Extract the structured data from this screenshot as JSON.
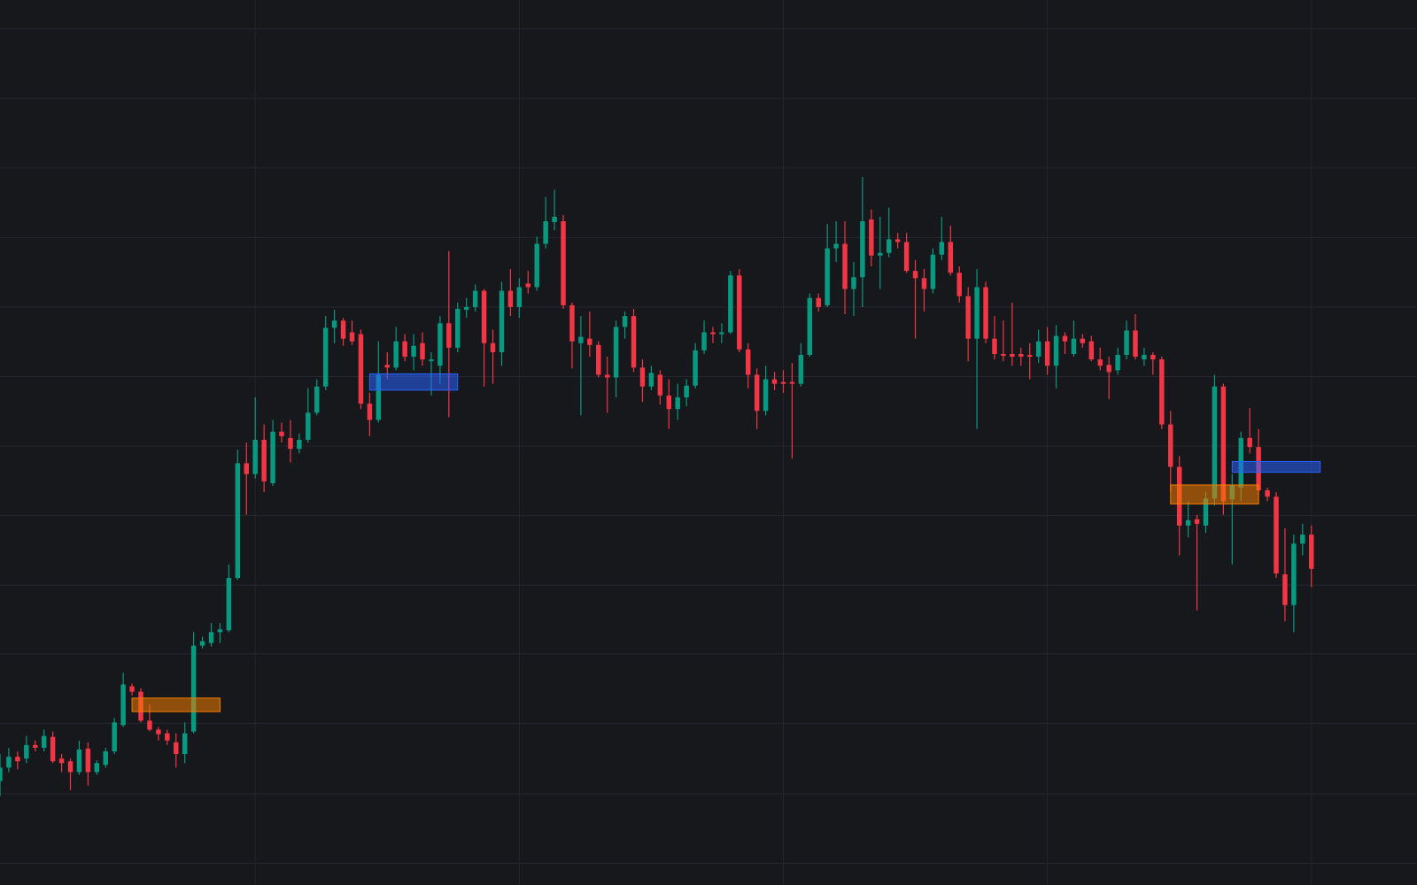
{
  "chart_data": {
    "type": "candlestick",
    "up_color": "#089981",
    "down_color": "#f23645",
    "grid": true,
    "xlim": [
      0,
      161
    ],
    "ylim": [
      0,
      980
    ],
    "xticks": [
      29,
      59,
      89,
      119,
      149
    ],
    "yticks": [
      24,
      101,
      179,
      256,
      332,
      409,
      486,
      563,
      640,
      717,
      794,
      871,
      948
    ],
    "open": [
      115,
      130,
      142,
      140,
      155,
      152,
      164,
      140,
      137,
      125,
      151,
      125,
      133,
      148,
      177,
      220,
      214,
      182,
      172,
      168,
      158,
      145,
      170,
      265,
      268,
      280,
      282,
      340,
      467,
      455,
      493,
      445,
      502,
      495,
      483,
      493,
      523,
      552,
      617,
      625,
      612,
      610,
      533,
      515,
      576,
      573,
      602,
      585,
      600,
      580,
      575,
      622,
      595,
      637,
      640,
      658,
      600,
      590,
      658,
      640,
      666,
      662,
      710,
      734,
      735,
      642,
      600,
      605,
      598,
      565,
      562,
      618,
      630,
      573,
      552,
      565,
      542,
      527,
      540,
      553,
      592,
      612,
      610,
      612,
      675,
      593,
      565,
      525,
      560,
      557,
      557,
      555,
      587,
      650,
      642,
      705,
      710,
      660,
      673,
      737,
      697,
      700,
      715,
      712,
      680,
      672,
      660,
      698,
      712,
      678,
      652,
      605,
      662,
      605,
      588,
      588,
      588,
      587,
      585,
      602,
      575,
      608,
      588,
      605,
      602,
      582,
      576,
      570,
      587,
      614,
      582,
      587,
      582,
      510,
      463,
      398,
      405,
      398,
      428,
      552,
      427,
      440,
      495,
      485,
      437,
      430,
      344,
      310,
      378,
      388
    ],
    "high": [
      145,
      152,
      148,
      165,
      160,
      172,
      170,
      145,
      140,
      160,
      158,
      138,
      152,
      185,
      235,
      223,
      218,
      200,
      175,
      172,
      168,
      180,
      280,
      275,
      290,
      290,
      355,
      482,
      490,
      540,
      510,
      515,
      512,
      515,
      500,
      550,
      560,
      630,
      637,
      628,
      625,
      615,
      545,
      602,
      590,
      618,
      610,
      610,
      612,
      590,
      630,
      702,
      645,
      650,
      665,
      660,
      615,
      668,
      682,
      672,
      680,
      718,
      762,
      770,
      742,
      645,
      630,
      635,
      602,
      585,
      625,
      635,
      638,
      582,
      575,
      570,
      560,
      555,
      560,
      600,
      625,
      618,
      622,
      680,
      682,
      600,
      572,
      575,
      568,
      570,
      578,
      600,
      655,
      655,
      732,
      735,
      735,
      690,
      784,
      748,
      740,
      750,
      722,
      722,
      692,
      682,
      705,
      740,
      730,
      685,
      662,
      682,
      668,
      630,
      625,
      645,
      595,
      600,
      615,
      618,
      620,
      612,
      625,
      610,
      608,
      595,
      585,
      595,
      625,
      632,
      595,
      590,
      585,
      525,
      475,
      425,
      410,
      435,
      565,
      555,
      455,
      502,
      528,
      505,
      440,
      435,
      395,
      388,
      400,
      398
    ],
    "low": [
      98,
      125,
      128,
      135,
      148,
      148,
      135,
      125,
      105,
      122,
      110,
      122,
      130,
      145,
      175,
      210,
      180,
      170,
      160,
      155,
      130,
      135,
      168,
      262,
      264,
      268,
      280,
      338,
      410,
      450,
      435,
      442,
      490,
      468,
      478,
      490,
      520,
      548,
      600,
      597,
      598,
      527,
      497,
      512,
      560,
      570,
      580,
      570,
      575,
      542,
      555,
      518,
      590,
      628,
      635,
      552,
      555,
      575,
      630,
      628,
      655,
      658,
      705,
      725,
      638,
      572,
      520,
      585,
      562,
      523,
      540,
      605,
      568,
      535,
      548,
      532,
      505,
      515,
      530,
      550,
      588,
      600,
      600,
      610,
      590,
      550,
      505,
      520,
      548,
      545,
      472,
      552,
      585,
      635,
      640,
      690,
      632,
      630,
      640,
      685,
      660,
      695,
      705,
      678,
      605,
      635,
      655,
      692,
      675,
      645,
      580,
      505,
      600,
      582,
      580,
      575,
      575,
      560,
      578,
      565,
      550,
      588,
      585,
      595,
      580,
      570,
      538,
      565,
      582,
      582,
      575,
      565,
      505,
      435,
      365,
      385,
      304,
      390,
      420,
      410,
      355,
      425,
      478,
      432,
      425,
      340,
      292,
      280,
      365,
      330
    ],
    "close": [
      130,
      142,
      137,
      155,
      152,
      165,
      137,
      135,
      125,
      150,
      125,
      135,
      148,
      180,
      222,
      214,
      182,
      172,
      167,
      160,
      145,
      168,
      265,
      270,
      280,
      283,
      340,
      467,
      455,
      493,
      447,
      502,
      497,
      483,
      493,
      523,
      552,
      617,
      625,
      605,
      602,
      533,
      515,
      565,
      573,
      602,
      585,
      597,
      582,
      582,
      622,
      595,
      638,
      640,
      658,
      600,
      590,
      658,
      640,
      662,
      662,
      710,
      735,
      740,
      642,
      602,
      607,
      598,
      565,
      562,
      618,
      630,
      573,
      552,
      567,
      542,
      527,
      540,
      553,
      592,
      612,
      610,
      612,
      675,
      593,
      565,
      525,
      560,
      555,
      555,
      555,
      587,
      650,
      640,
      705,
      710,
      660,
      673,
      735,
      697,
      700,
      715,
      712,
      680,
      672,
      660,
      698,
      712,
      678,
      652,
      605,
      662,
      605,
      588,
      586,
      585,
      585,
      585,
      602,
      575,
      608,
      602,
      605,
      600,
      582,
      575,
      568,
      587,
      614,
      585,
      587,
      582,
      510,
      463,
      398,
      404,
      400,
      428,
      552,
      425,
      443,
      495,
      485,
      437,
      430,
      345,
      310,
      378,
      388,
      350
    ],
    "zones": [
      {
        "x": [
          15,
          25
        ],
        "y": [
          192,
          207
        ],
        "color": "#f57c00"
      },
      {
        "x": [
          42,
          52
        ],
        "y": [
          548,
          566
        ],
        "color": "#2962ff"
      },
      {
        "x": [
          133,
          143
        ],
        "y": [
          422,
          443
        ],
        "color": "#f57c00"
      },
      {
        "x": [
          140,
          150
        ],
        "y": [
          457,
          469
        ],
        "color": "#2962ff"
      }
    ]
  }
}
